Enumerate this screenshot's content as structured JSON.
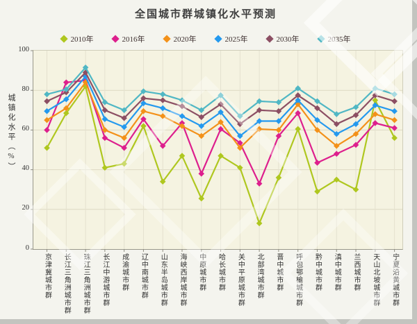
{
  "title": "全国城市群城镇化水平预测",
  "chart_data": {
    "type": "line",
    "title": "全国城市群城镇化水平预测",
    "xlabel": "",
    "ylabel": "城镇化水平（%）",
    "ylim": [
      0,
      100
    ],
    "yticks": [
      0,
      20,
      40,
      60,
      80,
      100
    ],
    "grid": true,
    "legend_position": "top",
    "marker": "diamond",
    "plot_background": "#f5f3e1",
    "categories": [
      "京津冀城市群",
      "长江三角洲城市群",
      "珠江三角洲城市群",
      "长江中游城市群",
      "成渝城市群",
      "辽中南城市群",
      "山东半岛城市群",
      "海峡西岸城市群",
      "中原城市群",
      "哈长城市群",
      "关中平原城市群",
      "北部湾城市群",
      "晋中城市群",
      "呼包鄂榆城市群",
      "黔中城市群",
      "滇中城市群",
      "兰西城市群",
      "天山北坡城市群",
      "宁夏沿黄城市群"
    ],
    "series": [
      {
        "name": "2010年",
        "color": "#afc71f",
        "values": [
          51,
          68.5,
          82,
          41,
          43,
          62,
          34,
          47,
          25.5,
          47,
          41,
          13,
          36,
          60.5,
          29,
          35,
          30,
          75,
          56
        ]
      },
      {
        "name": "2016年",
        "color": "#dd1f8d",
        "values": [
          60,
          84,
          85,
          56,
          51,
          65.5,
          52,
          63.5,
          38,
          60.5,
          53.5,
          33,
          57,
          68.5,
          43.5,
          48,
          52.5,
          63.5,
          61
        ]
      },
      {
        "name": "2020年",
        "color": "#f39119",
        "values": [
          65,
          71,
          84,
          60,
          56,
          69.5,
          67,
          62,
          57,
          64,
          51,
          60.5,
          60,
          73,
          60,
          52,
          58,
          68,
          65
        ]
      },
      {
        "name": "2025年",
        "color": "#2499ee",
        "values": [
          69.5,
          75.5,
          87,
          65.5,
          61.5,
          73.5,
          71,
          67,
          62,
          69,
          57,
          64.5,
          64.5,
          75,
          65,
          58,
          63,
          72.5,
          69.5
        ]
      },
      {
        "name": "2030年",
        "color": "#8c4f63",
        "values": [
          74.5,
          79,
          89,
          70,
          66,
          76,
          75,
          72,
          66.5,
          73,
          63,
          70,
          69.5,
          77.5,
          71,
          63,
          67.5,
          77.5,
          74.5
        ]
      },
      {
        "name": "2035年",
        "color": "#50b7c4",
        "values": [
          78,
          80.5,
          91.5,
          74,
          70,
          79.5,
          78,
          75,
          70,
          77.5,
          67,
          74.5,
          74,
          81,
          74.5,
          68,
          71.5,
          81,
          78
        ]
      }
    ]
  }
}
